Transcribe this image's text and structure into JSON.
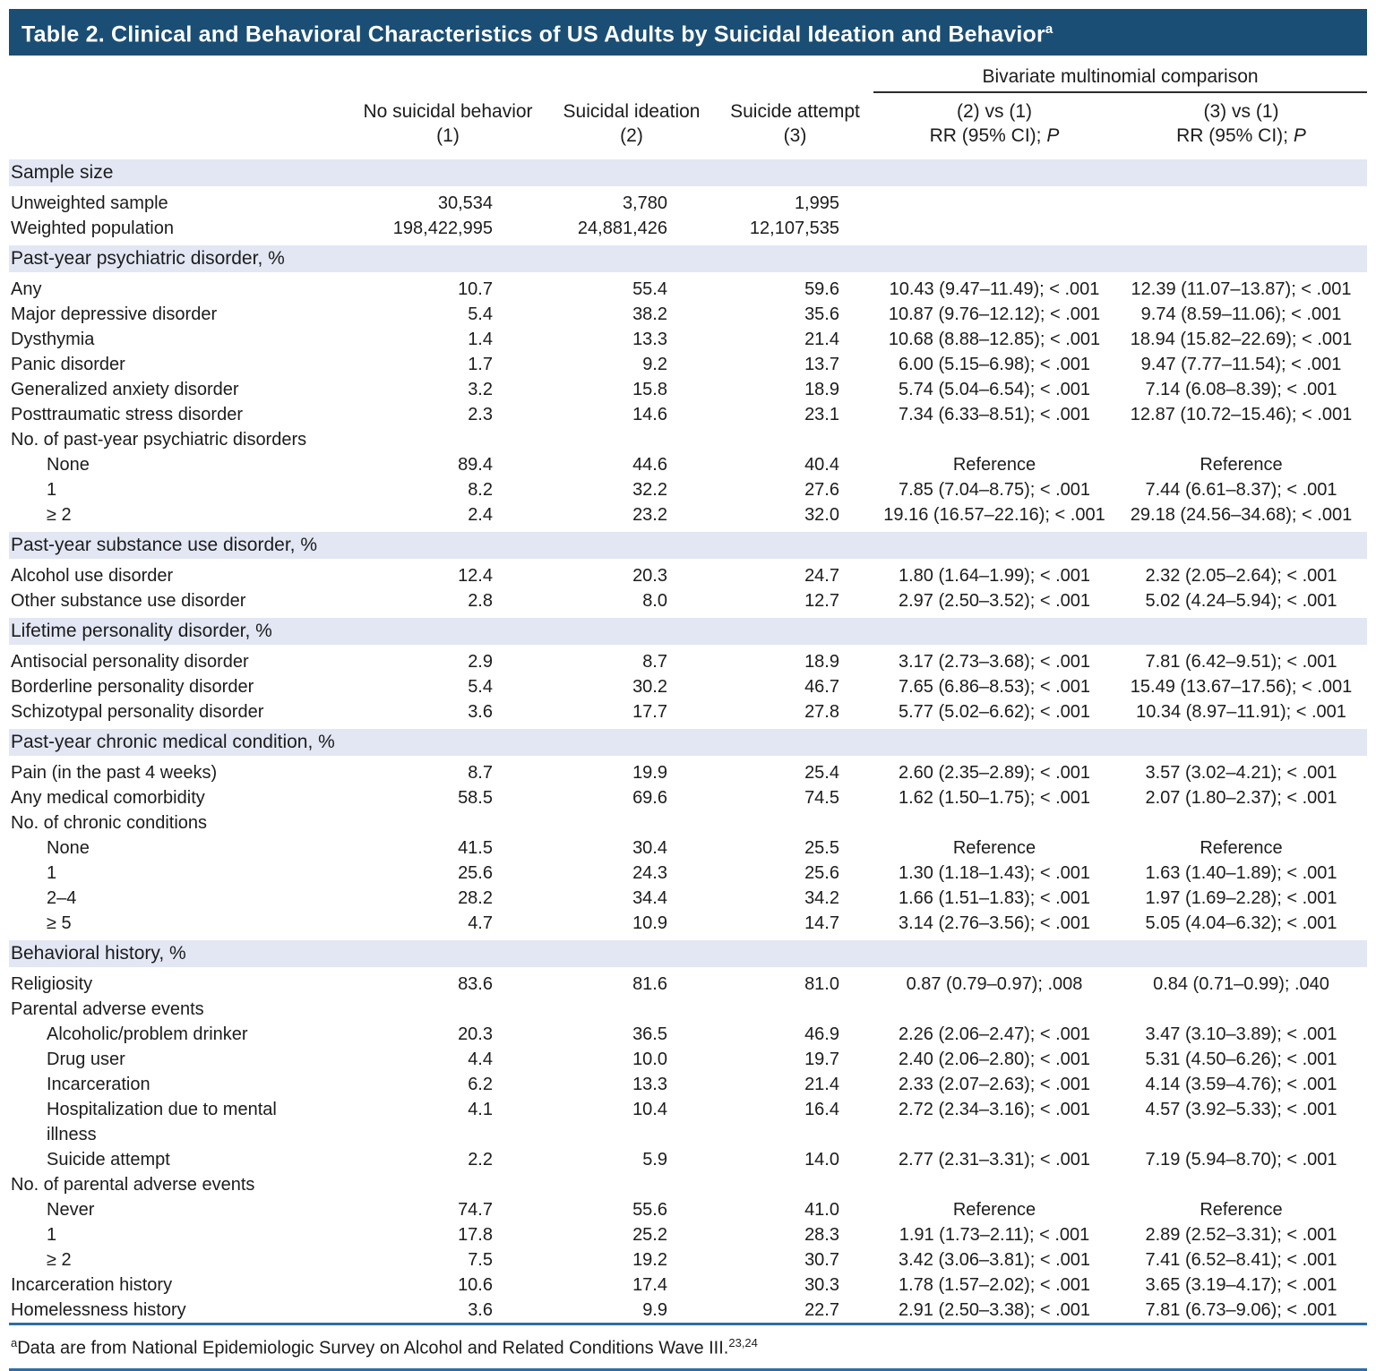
{
  "title": {
    "text": "Table 2. Clinical and Behavioral Characteristics of US Adults by Suicidal Ideation and Behavior",
    "sup": "a"
  },
  "colors": {
    "title_bar": "#1a4e75",
    "section_bg": "#e3e7f4",
    "rule_blue": "#2e6da6",
    "rule_dark": "#2b2b2b"
  },
  "columns": {
    "group_header": "Bivariate multinomial comparison",
    "no_suicidal_behavior": {
      "line1": "No suicidal behavior",
      "line2": "(1)"
    },
    "suicidal_ideation": {
      "line1": "Suicidal ideation",
      "line2": "(2)"
    },
    "suicide_attempt": {
      "line1": "Suicide attempt",
      "line2": "(3)"
    },
    "comp21": {
      "line1": "(2) vs (1)",
      "rr": "RR (95% CI); ",
      "p": "P"
    },
    "comp31": {
      "line1": "(3) vs (1)",
      "rr": "RR (95% CI); ",
      "p": "P"
    }
  },
  "rows": [
    {
      "type": "section",
      "label": "Sample size"
    },
    {
      "type": "data",
      "label": "Unweighted sample",
      "v1": "30,534",
      "v2": "3,780",
      "v3": "1,995",
      "rr21": "",
      "rr31": ""
    },
    {
      "type": "data",
      "label": "Weighted population",
      "v1": "198,422,995",
      "v2": "24,881,426",
      "v3": "12,107,535",
      "rr21": "",
      "rr31": ""
    },
    {
      "type": "section",
      "label": "Past-year psychiatric disorder, %"
    },
    {
      "type": "data",
      "label": "Any",
      "v1": "10.7",
      "v2": "55.4",
      "v3": "59.6",
      "rr21": "10.43 (9.47–11.49); < .001",
      "rr31": "12.39 (11.07–13.87); < .001"
    },
    {
      "type": "data",
      "label": "Major depressive disorder",
      "v1": "5.4",
      "v2": "38.2",
      "v3": "35.6",
      "rr21": "10.87 (9.76–12.12); < .001",
      "rr31": "9.74 (8.59–11.06); < .001"
    },
    {
      "type": "data",
      "label": "Dysthymia",
      "v1": "1.4",
      "v2": "13.3",
      "v3": "21.4",
      "rr21": "10.68 (8.88–12.85); < .001",
      "rr31": "18.94 (15.82–22.69); < .001"
    },
    {
      "type": "data",
      "label": "Panic disorder",
      "v1": "1.7",
      "v2": "9.2",
      "v3": "13.7",
      "rr21": "6.00 (5.15–6.98); < .001",
      "rr31": "9.47 (7.77–11.54); < .001"
    },
    {
      "type": "data",
      "label": "Generalized anxiety disorder",
      "v1": "3.2",
      "v2": "15.8",
      "v3": "18.9",
      "rr21": "5.74 (5.04–6.54); < .001",
      "rr31": "7.14 (6.08–8.39); < .001"
    },
    {
      "type": "data",
      "label": "Posttraumatic stress disorder",
      "v1": "2.3",
      "v2": "14.6",
      "v3": "23.1",
      "rr21": "7.34 (6.33–8.51); < .001",
      "rr31": "12.87 (10.72–15.46); < .001"
    },
    {
      "type": "subheader",
      "label": "No. of past-year psychiatric disorders"
    },
    {
      "type": "data",
      "indent": true,
      "label": "None",
      "v1": "89.4",
      "v2": "44.6",
      "v3": "40.4",
      "rr21": "Reference",
      "rr31": "Reference"
    },
    {
      "type": "data",
      "indent": true,
      "label": "1",
      "v1": "8.2",
      "v2": "32.2",
      "v3": "27.6",
      "rr21": "7.85 (7.04–8.75); < .001",
      "rr31": "7.44 (6.61–8.37); < .001"
    },
    {
      "type": "data",
      "indent": true,
      "label": "≥ 2",
      "v1": "2.4",
      "v2": "23.2",
      "v3": "32.0",
      "rr21": "19.16 (16.57–22.16); < .001",
      "rr31": "29.18 (24.56–34.68); < .001"
    },
    {
      "type": "section",
      "label": "Past-year substance use disorder, %"
    },
    {
      "type": "data",
      "label": "Alcohol use disorder",
      "v1": "12.4",
      "v2": "20.3",
      "v3": "24.7",
      "rr21": "1.80 (1.64–1.99); < .001",
      "rr31": "2.32 (2.05–2.64); < .001"
    },
    {
      "type": "data",
      "label": "Other substance use disorder",
      "v1": "2.8",
      "v2": "8.0",
      "v3": "12.7",
      "rr21": "2.97 (2.50–3.52); < .001",
      "rr31": "5.02 (4.24–5.94); < .001"
    },
    {
      "type": "section",
      "label": "Lifetime personality disorder, %"
    },
    {
      "type": "data",
      "label": "Antisocial personality disorder",
      "v1": "2.9",
      "v2": "8.7",
      "v3": "18.9",
      "rr21": "3.17 (2.73–3.68); < .001",
      "rr31": "7.81 (6.42–9.51); < .001"
    },
    {
      "type": "data",
      "label": "Borderline personality disorder",
      "v1": "5.4",
      "v2": "30.2",
      "v3": "46.7",
      "rr21": "7.65 (6.86–8.53); < .001",
      "rr31": "15.49 (13.67–17.56); < .001"
    },
    {
      "type": "data",
      "label": "Schizotypal personality disorder",
      "v1": "3.6",
      "v2": "17.7",
      "v3": "27.8",
      "rr21": "5.77 (5.02–6.62); < .001",
      "rr31": "10.34 (8.97–11.91); < .001"
    },
    {
      "type": "section",
      "label": "Past-year chronic medical condition, %"
    },
    {
      "type": "data",
      "label": "Pain (in the past 4 weeks)",
      "v1": "8.7",
      "v2": "19.9",
      "v3": "25.4",
      "rr21": "2.60 (2.35–2.89); < .001",
      "rr31": "3.57 (3.02–4.21); < .001"
    },
    {
      "type": "data",
      "label": "Any medical comorbidity",
      "v1": "58.5",
      "v2": "69.6",
      "v3": "74.5",
      "rr21": "1.62 (1.50–1.75); < .001",
      "rr31": "2.07 (1.80–2.37); < .001"
    },
    {
      "type": "subheader",
      "label": "No. of chronic conditions"
    },
    {
      "type": "data",
      "indent": true,
      "label": "None",
      "v1": "41.5",
      "v2": "30.4",
      "v3": "25.5",
      "rr21": "Reference",
      "rr31": "Reference"
    },
    {
      "type": "data",
      "indent": true,
      "label": "1",
      "v1": "25.6",
      "v2": "24.3",
      "v3": "25.6",
      "rr21": "1.30 (1.18–1.43); < .001",
      "rr31": "1.63 (1.40–1.89); < .001"
    },
    {
      "type": "data",
      "indent": true,
      "label": "2–4",
      "v1": "28.2",
      "v2": "34.4",
      "v3": "34.2",
      "rr21": "1.66 (1.51–1.83); < .001",
      "rr31": "1.97 (1.69–2.28); < .001"
    },
    {
      "type": "data",
      "indent": true,
      "label": "≥ 5",
      "v1": "4.7",
      "v2": "10.9",
      "v3": "14.7",
      "rr21": "3.14 (2.76–3.56); < .001",
      "rr31": "5.05 (4.04–6.32); < .001"
    },
    {
      "type": "section",
      "label": "Behavioral history, %"
    },
    {
      "type": "data",
      "label": "Religiosity",
      "v1": "83.6",
      "v2": "81.6",
      "v3": "81.0",
      "rr21": "0.87 (0.79–0.97); .008",
      "rr31": "0.84 (0.71–0.99); .040"
    },
    {
      "type": "subheader",
      "label": "Parental adverse events"
    },
    {
      "type": "data",
      "indent": true,
      "label": "Alcoholic/problem drinker",
      "v1": "20.3",
      "v2": "36.5",
      "v3": "46.9",
      "rr21": "2.26 (2.06–2.47); < .001",
      "rr31": "3.47 (3.10–3.89); < .001"
    },
    {
      "type": "data",
      "indent": true,
      "label": "Drug user",
      "v1": "4.4",
      "v2": "10.0",
      "v3": "19.7",
      "rr21": "2.40 (2.06–2.80); < .001",
      "rr31": "5.31 (4.50–6.26); < .001"
    },
    {
      "type": "data",
      "indent": true,
      "label": "Incarceration",
      "v1": "6.2",
      "v2": "13.3",
      "v3": "21.4",
      "rr21": "2.33 (2.07–2.63); < .001",
      "rr31": "4.14 (3.59–4.76); < .001"
    },
    {
      "type": "data",
      "indent": true,
      "wrap": true,
      "label": "Hospitalization due to mental illness",
      "v1": "4.1",
      "v2": "10.4",
      "v3": "16.4",
      "rr21": "2.72 (2.34–3.16); < .001",
      "rr31": "4.57 (3.92–5.33); < .001"
    },
    {
      "type": "data",
      "indent": true,
      "label": "Suicide attempt",
      "v1": "2.2",
      "v2": "5.9",
      "v3": "14.0",
      "rr21": "2.77 (2.31–3.31); < .001",
      "rr31": "7.19 (5.94–8.70); < .001"
    },
    {
      "type": "subheader",
      "label": "No. of parental adverse events"
    },
    {
      "type": "data",
      "indent": true,
      "label": "Never",
      "v1": "74.7",
      "v2": "55.6",
      "v3": "41.0",
      "rr21": "Reference",
      "rr31": "Reference"
    },
    {
      "type": "data",
      "indent": true,
      "label": "1",
      "v1": "17.8",
      "v2": "25.2",
      "v3": "28.3",
      "rr21": "1.91 (1.73–2.11); < .001",
      "rr31": "2.89 (2.52–3.31); < .001"
    },
    {
      "type": "data",
      "indent": true,
      "label": "≥ 2",
      "v1": "7.5",
      "v2": "19.2",
      "v3": "30.7",
      "rr21": "3.42 (3.06–3.81); < .001",
      "rr31": "7.41 (6.52–8.41); < .001"
    },
    {
      "type": "data",
      "label": "Incarceration history",
      "v1": "10.6",
      "v2": "17.4",
      "v3": "30.3",
      "rr21": "1.78 (1.57–2.02); < .001",
      "rr31": "3.65 (3.19–4.17); < .001"
    },
    {
      "type": "data",
      "label": "Homelessness history",
      "v1": "3.6",
      "v2": "9.9",
      "v3": "22.7",
      "rr21": "2.91 (2.50–3.38); < .001",
      "rr31": "7.81 (6.73–9.06); < .001"
    }
  ],
  "footnote": {
    "sup": "a",
    "text": "Data are from National Epidemiologic Survey on Alcohol and Related Conditions Wave III.",
    "refs": "23,24"
  }
}
